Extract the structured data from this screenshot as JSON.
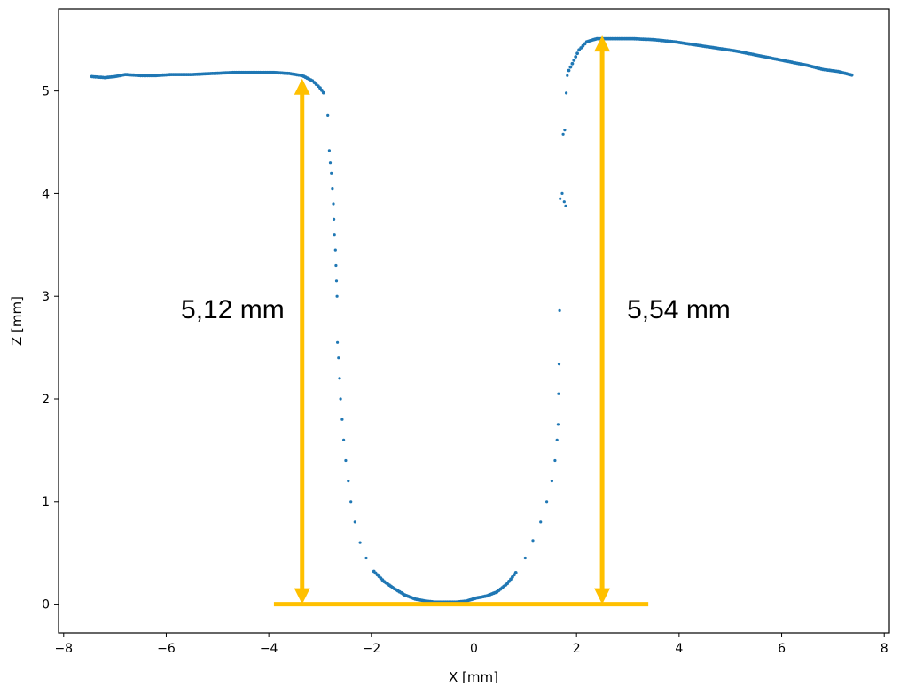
{
  "chart_data": {
    "type": "scatter",
    "title": "",
    "xlabel": "X [mm]",
    "ylabel": "Z [mm]",
    "xlim": [
      -8.1,
      8.1
    ],
    "ylim": [
      -0.28,
      5.8
    ],
    "xticks": [
      -8,
      -6,
      -4,
      -2,
      0,
      2,
      4,
      6,
      8
    ],
    "xtick_labels": [
      "−8",
      "−6",
      "−4",
      "−2",
      "0",
      "2",
      "4",
      "6",
      "8"
    ],
    "yticks": [
      0,
      1,
      2,
      3,
      4,
      5
    ],
    "ytick_labels": [
      "0",
      "1",
      "2",
      "3",
      "4",
      "5"
    ],
    "grid": false,
    "series": [
      {
        "color": "#1f77b4",
        "marker": "dot",
        "left_surface": [
          [
            -7.45,
            5.14
          ],
          [
            -7.2,
            5.13
          ],
          [
            -7.0,
            5.14
          ],
          [
            -6.8,
            5.16
          ],
          [
            -6.5,
            5.15
          ],
          [
            -6.2,
            5.15
          ],
          [
            -5.9,
            5.16
          ],
          [
            -5.5,
            5.16
          ],
          [
            -5.1,
            5.17
          ],
          [
            -4.7,
            5.18
          ],
          [
            -4.3,
            5.18
          ],
          [
            -3.9,
            5.18
          ],
          [
            -3.6,
            5.17
          ],
          [
            -3.35,
            5.15
          ],
          [
            -3.15,
            5.1
          ],
          [
            -3.0,
            5.03
          ],
          [
            -2.9,
            4.96
          ]
        ],
        "left_wall": [
          [
            -2.85,
            4.76
          ],
          [
            -2.82,
            4.42
          ],
          [
            -2.8,
            4.3
          ],
          [
            -2.78,
            4.2
          ],
          [
            -2.76,
            4.05
          ],
          [
            -2.74,
            3.9
          ],
          [
            -2.73,
            3.75
          ],
          [
            -2.72,
            3.6
          ],
          [
            -2.7,
            3.45
          ],
          [
            -2.69,
            3.3
          ],
          [
            -2.68,
            3.15
          ],
          [
            -2.67,
            3.0
          ],
          [
            -2.66,
            2.55
          ],
          [
            -2.64,
            2.4
          ],
          [
            -2.62,
            2.2
          ],
          [
            -2.6,
            2.0
          ],
          [
            -2.57,
            1.8
          ],
          [
            -2.54,
            1.6
          ],
          [
            -2.5,
            1.4
          ],
          [
            -2.45,
            1.2
          ],
          [
            -2.4,
            1.0
          ],
          [
            -2.32,
            0.8
          ],
          [
            -2.22,
            0.6
          ],
          [
            -2.1,
            0.45
          ]
        ],
        "bottom": [
          [
            -1.95,
            0.32
          ],
          [
            -1.75,
            0.22
          ],
          [
            -1.55,
            0.15
          ],
          [
            -1.35,
            0.09
          ],
          [
            -1.15,
            0.05
          ],
          [
            -0.95,
            0.03
          ],
          [
            -0.75,
            0.02
          ],
          [
            -0.55,
            0.02
          ],
          [
            -0.35,
            0.02
          ],
          [
            -0.15,
            0.03
          ],
          [
            0.05,
            0.06
          ],
          [
            0.25,
            0.08
          ],
          [
            0.45,
            0.12
          ],
          [
            0.65,
            0.2
          ],
          [
            0.85,
            0.33
          ]
        ],
        "right_wall": [
          [
            1.0,
            0.45
          ],
          [
            1.15,
            0.62
          ],
          [
            1.3,
            0.8
          ],
          [
            1.42,
            1.0
          ],
          [
            1.52,
            1.2
          ],
          [
            1.58,
            1.4
          ],
          [
            1.62,
            1.6
          ],
          [
            1.64,
            1.75
          ],
          [
            1.65,
            2.05
          ],
          [
            1.66,
            2.34
          ],
          [
            1.67,
            2.86
          ],
          [
            1.68,
            3.95
          ],
          [
            1.72,
            4.0
          ],
          [
            1.76,
            3.92
          ],
          [
            1.79,
            3.88
          ],
          [
            1.74,
            4.58
          ],
          [
            1.77,
            4.62
          ],
          [
            1.8,
            4.98
          ],
          [
            1.82,
            5.15
          ]
        ],
        "right_surface": [
          [
            1.85,
            5.2
          ],
          [
            1.95,
            5.3
          ],
          [
            2.05,
            5.4
          ],
          [
            2.2,
            5.48
          ],
          [
            2.4,
            5.51
          ],
          [
            2.7,
            5.51
          ],
          [
            3.1,
            5.51
          ],
          [
            3.5,
            5.5
          ],
          [
            3.9,
            5.48
          ],
          [
            4.3,
            5.45
          ],
          [
            4.7,
            5.42
          ],
          [
            5.1,
            5.39
          ],
          [
            5.5,
            5.35
          ],
          [
            5.9,
            5.31
          ],
          [
            6.2,
            5.28
          ],
          [
            6.5,
            5.25
          ],
          [
            6.8,
            5.21
          ],
          [
            7.1,
            5.19
          ],
          [
            7.4,
            5.15
          ]
        ]
      }
    ],
    "annotations": [
      {
        "text": "5,12 mm",
        "x": -3.35,
        "y_from": 0.0,
        "y_to": 5.12,
        "color": "#ffc000"
      },
      {
        "text": "5,54 mm",
        "x": 2.5,
        "y_from": 0.0,
        "y_to": 5.54,
        "color": "#ffc000"
      }
    ],
    "baseline": {
      "x_from": -3.9,
      "x_to": 3.4,
      "y": 0.0,
      "color": "#ffc000"
    }
  }
}
